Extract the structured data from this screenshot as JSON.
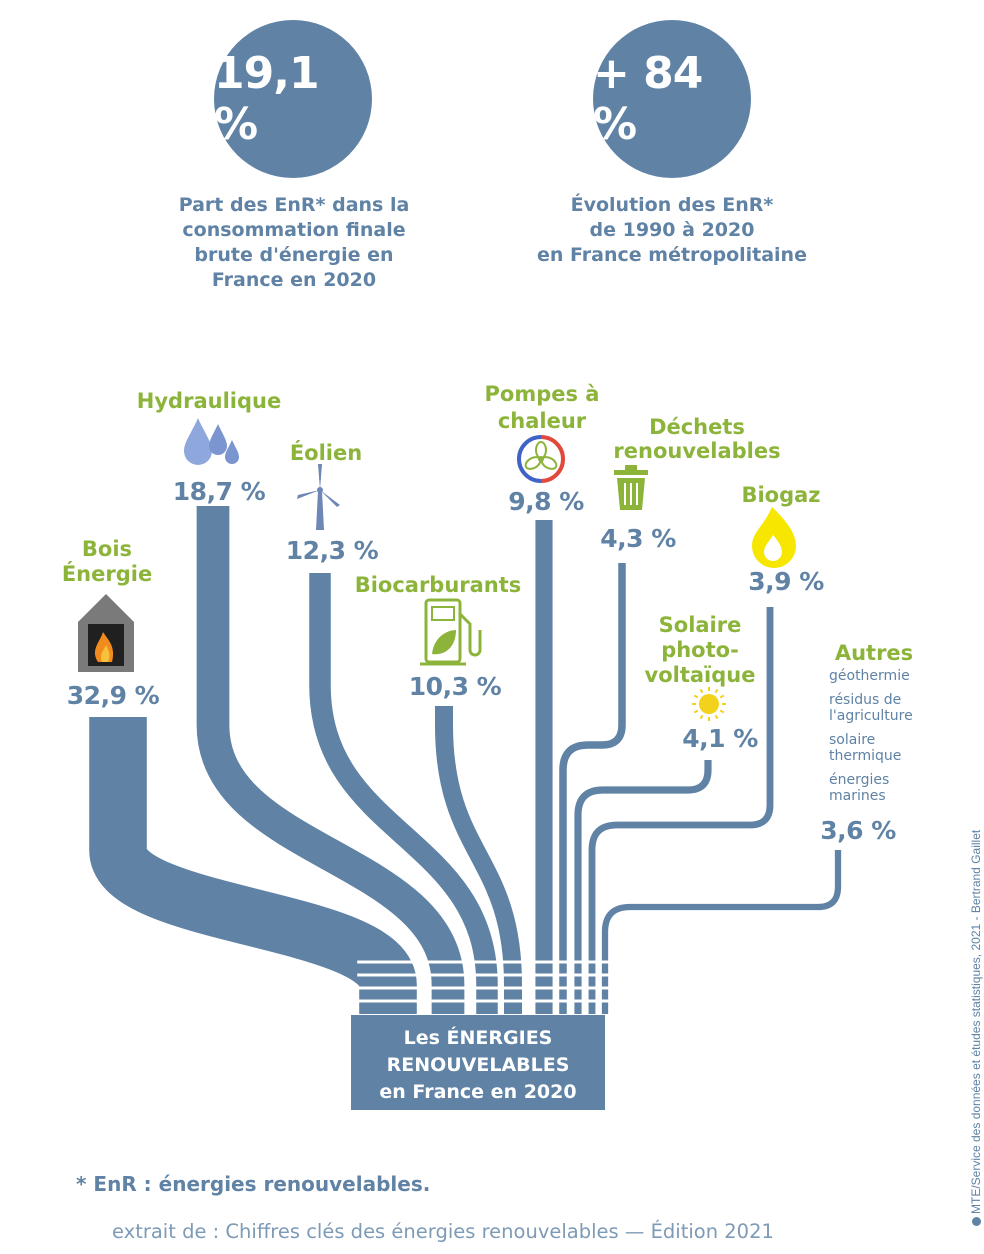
{
  "stats": [
    {
      "value": "19,1 %",
      "caption": [
        "Part des EnR* dans la",
        "consommation finale",
        "brute d'énergie en",
        "France en 2020"
      ]
    },
    {
      "value": "+ 84 %",
      "caption": [
        "Évolution des EnR*",
        "de 1990 à 2020",
        "en France métropolitaine"
      ]
    }
  ],
  "chart_data": {
    "type": "sankey",
    "target_label": [
      "Les ÉNERGIES",
      "RENOUVELABLES",
      "en France en 2020"
    ],
    "unit": "%",
    "categories": [
      "Bois Énergie",
      "Hydraulique",
      "Éolien",
      "Biocarburants",
      "Pompes à chaleur",
      "Déchets renouvelables",
      "Solaire photovoltaïque",
      "Biogaz",
      "Autres"
    ],
    "values": [
      32.9,
      18.7,
      12.3,
      10.3,
      9.8,
      4.3,
      4.1,
      3.9,
      3.6
    ],
    "sources": [
      {
        "label_lines": [
          "Bois",
          "Énergie"
        ],
        "value": 32.9,
        "value_label": "32,9 %",
        "icon": "fireplace-icon"
      },
      {
        "label_lines": [
          "Hydraulique"
        ],
        "value": 18.7,
        "value_label": "18,7 %",
        "icon": "water-drops-icon"
      },
      {
        "label_lines": [
          "Éolien"
        ],
        "value": 12.3,
        "value_label": "12,3 %",
        "icon": "wind-turbine-icon"
      },
      {
        "label_lines": [
          "Biocarburants"
        ],
        "value": 10.3,
        "value_label": "10,3 %",
        "icon": "fuel-pump-icon"
      },
      {
        "label_lines": [
          "Pompes à",
          "chaleur"
        ],
        "value": 9.8,
        "value_label": "9,8 %",
        "icon": "heat-pump-icon"
      },
      {
        "label_lines": [
          "Déchets",
          "renouvelables"
        ],
        "value": 4.3,
        "value_label": "4,3 %",
        "icon": "trash-bin-icon"
      },
      {
        "label_lines": [
          "Solaire",
          "photo-",
          "voltaïque"
        ],
        "value": 4.1,
        "value_label": "4,1 %",
        "icon": "sun-icon"
      },
      {
        "label_lines": [
          "Biogaz"
        ],
        "value": 3.9,
        "value_label": "3,9 %",
        "icon": "flame-icon"
      },
      {
        "label_lines": [
          "Autres"
        ],
        "value": 3.6,
        "value_label": "3,6 %",
        "icon": "",
        "details": [
          [
            "géothermie"
          ],
          [
            "résidus de",
            "l'agriculture"
          ],
          [
            "solaire",
            "thermique"
          ],
          [
            "énergies",
            "marines"
          ]
        ]
      }
    ]
  },
  "colors": {
    "flow": "#5f82a5",
    "label_green": "#8db43a",
    "value_blue": "#5f82a5",
    "footer": "#7d9ab6"
  },
  "footnote": "* EnR : énergies renouvelables.",
  "source": {
    "prefix": "extrait de : ",
    "title": "Chiffres clés des énergies renouvelables — Édition 2021"
  },
  "credit": "MTE/Service des données et études statistiques, 2021 - Bertrand Gaillet"
}
